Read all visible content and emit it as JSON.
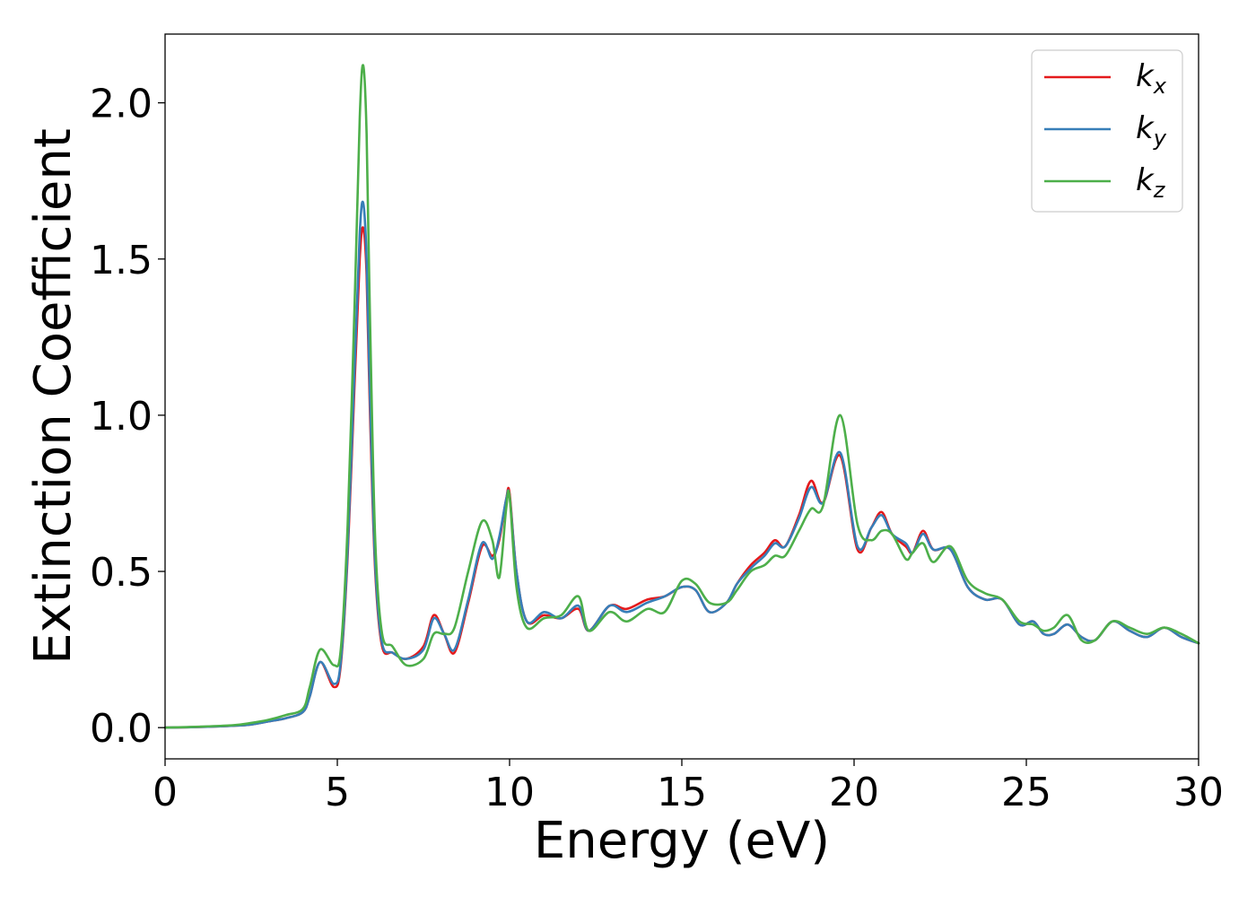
{
  "chart_data": {
    "type": "line",
    "title": "",
    "xlabel": "Energy (eV)",
    "ylabel": "Extinction Coefficient",
    "xlim": [
      0,
      30
    ],
    "ylim": [
      -0.1,
      2.22
    ],
    "xticks": [
      0,
      5,
      10,
      15,
      20,
      25,
      30
    ],
    "xtick_labels": [
      "0",
      "5",
      "10",
      "15",
      "20",
      "25",
      "30"
    ],
    "yticks": [
      0.0,
      0.5,
      1.0,
      1.5,
      2.0
    ],
    "ytick_labels": [
      "0.0",
      "0.5",
      "1.0",
      "1.5",
      "2.0"
    ],
    "grid": false,
    "legend_position": "top-right",
    "series": [
      {
        "name": "kx",
        "legend_base": "k",
        "legend_sub": "x",
        "color": "#e41a1c",
        "x": [
          0,
          1,
          2,
          2.5,
          3,
          3.5,
          4,
          4.2,
          4.5,
          4.9,
          5.1,
          5.3,
          5.5,
          5.65,
          5.75,
          5.85,
          5.95,
          6.1,
          6.3,
          6.6,
          7.0,
          7.5,
          7.8,
          8.1,
          8.4,
          8.8,
          9.2,
          9.5,
          9.7,
          9.9,
          10.0,
          10.2,
          10.5,
          11.0,
          11.5,
          12.0,
          12.3,
          12.9,
          13.4,
          14.0,
          14.5,
          15.0,
          15.4,
          15.8,
          16.3,
          16.6,
          17.0,
          17.4,
          17.7,
          18.0,
          18.4,
          18.75,
          19.1,
          19.6,
          20.1,
          20.5,
          20.8,
          21.1,
          21.5,
          21.7,
          22.0,
          22.3,
          22.8,
          23.3,
          23.8,
          24.3,
          24.8,
          25.2,
          25.5,
          25.8,
          26.2,
          26.6,
          27.0,
          27.5,
          28.0,
          28.5,
          29.0,
          29.5,
          30.0
        ],
        "y": [
          0.0,
          0.002,
          0.006,
          0.01,
          0.02,
          0.03,
          0.05,
          0.1,
          0.21,
          0.13,
          0.2,
          0.55,
          1.1,
          1.5,
          1.6,
          1.45,
          1.0,
          0.5,
          0.26,
          0.24,
          0.22,
          0.26,
          0.36,
          0.3,
          0.24,
          0.4,
          0.58,
          0.55,
          0.6,
          0.73,
          0.75,
          0.5,
          0.34,
          0.36,
          0.35,
          0.38,
          0.31,
          0.39,
          0.38,
          0.41,
          0.42,
          0.45,
          0.44,
          0.37,
          0.4,
          0.46,
          0.52,
          0.56,
          0.6,
          0.58,
          0.68,
          0.79,
          0.72,
          0.87,
          0.57,
          0.64,
          0.69,
          0.62,
          0.58,
          0.56,
          0.63,
          0.57,
          0.57,
          0.45,
          0.41,
          0.41,
          0.33,
          0.34,
          0.3,
          0.3,
          0.33,
          0.29,
          0.28,
          0.34,
          0.31,
          0.29,
          0.32,
          0.29,
          0.27
        ]
      },
      {
        "name": "ky",
        "legend_base": "k",
        "legend_sub": "y",
        "color": "#377eb8",
        "x": [
          0,
          1,
          2,
          2.5,
          3,
          3.5,
          4,
          4.2,
          4.5,
          4.9,
          5.1,
          5.3,
          5.5,
          5.65,
          5.75,
          5.85,
          5.95,
          6.1,
          6.3,
          6.6,
          7.0,
          7.5,
          7.8,
          8.1,
          8.4,
          8.8,
          9.2,
          9.5,
          9.7,
          9.9,
          10.0,
          10.2,
          10.5,
          11.0,
          11.5,
          12.0,
          12.3,
          12.9,
          13.4,
          14.0,
          14.5,
          15.0,
          15.4,
          15.8,
          16.3,
          16.6,
          17.0,
          17.4,
          17.7,
          18.0,
          18.4,
          18.75,
          19.1,
          19.6,
          20.1,
          20.5,
          20.8,
          21.1,
          21.5,
          21.7,
          22.0,
          22.3,
          22.8,
          23.3,
          23.8,
          24.3,
          24.8,
          25.2,
          25.5,
          25.8,
          26.2,
          26.6,
          27.0,
          27.5,
          28.0,
          28.5,
          29.0,
          29.5,
          30.0
        ],
        "y": [
          0.0,
          0.002,
          0.006,
          0.01,
          0.02,
          0.03,
          0.05,
          0.1,
          0.21,
          0.14,
          0.21,
          0.57,
          1.15,
          1.58,
          1.68,
          1.5,
          1.05,
          0.52,
          0.27,
          0.24,
          0.22,
          0.25,
          0.35,
          0.3,
          0.25,
          0.41,
          0.59,
          0.54,
          0.61,
          0.73,
          0.74,
          0.5,
          0.34,
          0.37,
          0.35,
          0.39,
          0.31,
          0.39,
          0.37,
          0.4,
          0.42,
          0.45,
          0.44,
          0.37,
          0.4,
          0.46,
          0.51,
          0.55,
          0.59,
          0.58,
          0.67,
          0.77,
          0.72,
          0.88,
          0.58,
          0.64,
          0.68,
          0.62,
          0.59,
          0.56,
          0.62,
          0.57,
          0.57,
          0.45,
          0.41,
          0.41,
          0.33,
          0.34,
          0.3,
          0.3,
          0.33,
          0.29,
          0.28,
          0.34,
          0.31,
          0.29,
          0.32,
          0.29,
          0.27
        ]
      },
      {
        "name": "kz",
        "legend_base": "k",
        "legend_sub": "z",
        "color": "#4daf4a",
        "x": [
          0,
          1,
          2,
          2.5,
          3,
          3.5,
          4,
          4.2,
          4.5,
          4.9,
          5.1,
          5.3,
          5.5,
          5.65,
          5.75,
          5.85,
          5.95,
          6.1,
          6.3,
          6.6,
          7.0,
          7.5,
          7.8,
          8.1,
          8.4,
          8.8,
          9.2,
          9.5,
          9.7,
          9.9,
          10.0,
          10.2,
          10.5,
          11.0,
          11.5,
          12.0,
          12.3,
          12.9,
          13.4,
          14.0,
          14.5,
          15.0,
          15.4,
          15.8,
          16.3,
          16.6,
          17.0,
          17.4,
          17.7,
          18.0,
          18.4,
          18.75,
          19.1,
          19.6,
          20.1,
          20.5,
          20.8,
          21.1,
          21.5,
          21.7,
          22.0,
          22.3,
          22.8,
          23.3,
          23.8,
          24.3,
          24.8,
          25.2,
          25.5,
          25.8,
          26.2,
          26.6,
          27.0,
          27.5,
          28.0,
          28.5,
          29.0,
          29.5,
          30.0
        ],
        "y": [
          0.0,
          0.003,
          0.008,
          0.015,
          0.025,
          0.04,
          0.06,
          0.13,
          0.25,
          0.2,
          0.25,
          0.65,
          1.35,
          1.95,
          2.12,
          1.9,
          1.3,
          0.6,
          0.3,
          0.26,
          0.2,
          0.22,
          0.3,
          0.3,
          0.32,
          0.5,
          0.66,
          0.6,
          0.48,
          0.7,
          0.74,
          0.45,
          0.32,
          0.35,
          0.36,
          0.42,
          0.31,
          0.37,
          0.34,
          0.38,
          0.37,
          0.47,
          0.46,
          0.4,
          0.4,
          0.44,
          0.5,
          0.52,
          0.55,
          0.55,
          0.63,
          0.7,
          0.71,
          1.0,
          0.65,
          0.6,
          0.63,
          0.62,
          0.54,
          0.56,
          0.59,
          0.53,
          0.58,
          0.47,
          0.43,
          0.41,
          0.34,
          0.33,
          0.31,
          0.32,
          0.36,
          0.28,
          0.28,
          0.34,
          0.32,
          0.3,
          0.32,
          0.3,
          0.27
        ]
      }
    ]
  }
}
